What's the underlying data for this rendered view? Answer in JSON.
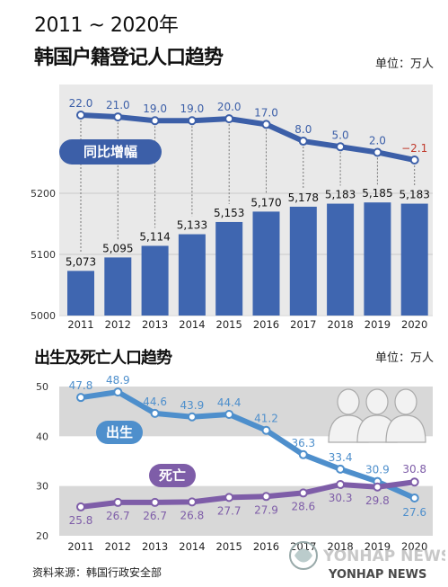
{
  "header": {
    "years": "2011 ~ 2020年",
    "title": "韩国户籍登记人口趋势",
    "unit": "单位：万人"
  },
  "section2": {
    "title": "出生及死亡人口趋势",
    "unit": "单位：万人"
  },
  "footer": {
    "source": "资料来源：韩国行政安全部",
    "logo_main": "YONHAP NEWS",
    "logo_sub": "YONHAP NEWS"
  },
  "colors": {
    "bar": "#3f66b0",
    "growth_line": "#3c5fa8",
    "births_line": "#4e8fcc",
    "deaths_line": "#7e5da8",
    "panel": "#e9e9e9",
    "band": "#d8d8d8"
  },
  "chart_data": [
    {
      "type": "bar+line",
      "categories": [
        "2011",
        "2012",
        "2013",
        "2014",
        "2015",
        "2016",
        "2017",
        "2018",
        "2019",
        "2020"
      ],
      "series": [
        {
          "name": "",
          "kind": "bar",
          "values": [
            5073,
            5095,
            5114,
            5133,
            5153,
            5170,
            5178,
            5183,
            5185,
            5183
          ],
          "labels": [
            "5,073",
            "5,095",
            "5,114",
            "5,133",
            "5,153",
            "5,170",
            "5,178",
            "5,183",
            "5,185",
            "5,183"
          ]
        },
        {
          "name": "同比增幅",
          "kind": "line",
          "values": [
            22.0,
            21.0,
            19.0,
            19.0,
            20.0,
            17.0,
            8.0,
            5.0,
            2.0,
            -2.1
          ],
          "labels": [
            "22.0",
            "21.0",
            "19.0",
            "19.0",
            "20.0",
            "17.0",
            "8.0",
            "5.0",
            "2.0",
            "−2.1"
          ]
        }
      ],
      "yticks": [
        "5000",
        "5100",
        "5200"
      ],
      "ylim": [
        5000,
        5200
      ],
      "title": "韩国户籍登记人口趋势",
      "unit": "单位：万人"
    },
    {
      "type": "line",
      "categories": [
        "2011",
        "2012",
        "2013",
        "2014",
        "2015",
        "2016",
        "2017",
        "2018",
        "2019",
        "2020"
      ],
      "series": [
        {
          "name": "出生",
          "values": [
            47.8,
            48.9,
            44.6,
            43.9,
            44.4,
            41.2,
            36.3,
            33.4,
            30.9,
            27.6
          ],
          "labels": [
            "47.8",
            "48.9",
            "44.6",
            "43.9",
            "44.4",
            "41.2",
            "36.3",
            "33.4",
            "30.9",
            "27.6"
          ]
        },
        {
          "name": "死亡",
          "values": [
            25.8,
            26.7,
            26.7,
            26.8,
            27.7,
            27.9,
            28.6,
            30.3,
            29.8,
            30.8
          ],
          "labels": [
            "25.8",
            "26.7",
            "26.7",
            "26.8",
            "27.7",
            "27.9",
            "28.6",
            "30.3",
            "29.8",
            "30.8"
          ]
        }
      ],
      "yticks": [
        "20",
        "30",
        "40",
        "50"
      ],
      "ylim": [
        20,
        50
      ],
      "title": "出生及死亡人口趋势",
      "unit": "单位：万人"
    }
  ]
}
